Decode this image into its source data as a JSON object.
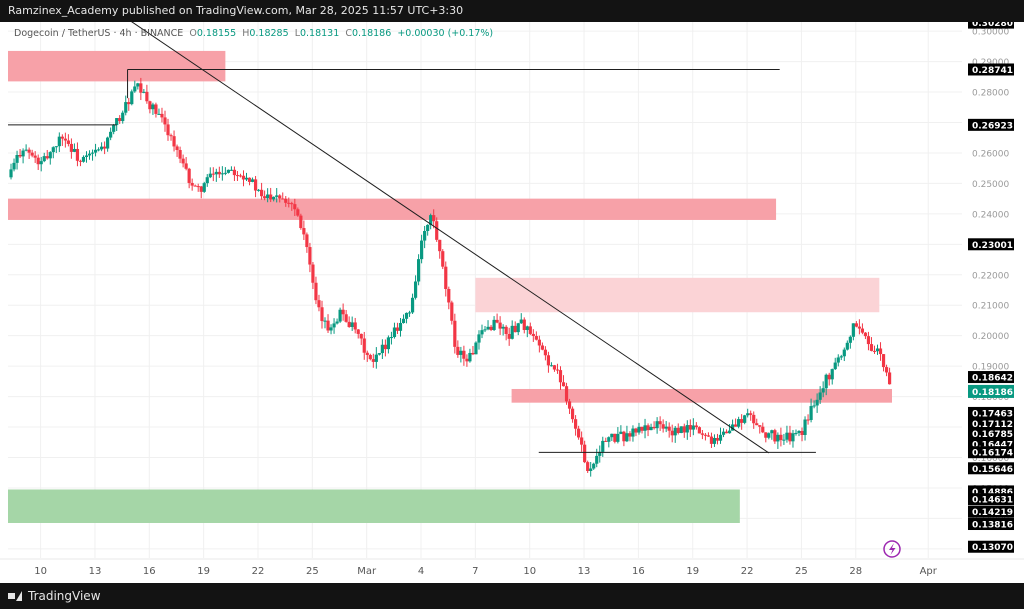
{
  "header": {
    "publisher_line": "Ramzinex_Academy published on TradingView.com, Mar 28, 2025 11:57 UTC+3:30"
  },
  "legend": {
    "symbol": "Dogecoin / TetherUS · 4h · BINANCE",
    "open_label": "O",
    "open": "0.18155",
    "high_label": "H",
    "high": "0.18285",
    "low_label": "L",
    "low": "0.18131",
    "close_label": "C",
    "close": "0.18186",
    "change": "+0.00030 (+0.17%)"
  },
  "footer": {
    "brand": "TradingView"
  },
  "colors": {
    "up": "#089981",
    "down": "#f23645",
    "zone_red": "#f7a1a8",
    "zone_pink": "#fbd3d6",
    "zone_green": "#a5d6a7",
    "label_bg": "#000000",
    "current_bg": "#089981"
  },
  "chart_data": {
    "type": "candlestick",
    "symbol": "Dogecoin / TetherUS",
    "interval": "4h",
    "exchange": "BINANCE",
    "y_axis": {
      "range": [
        0.127,
        0.303
      ],
      "ticks": [
        0.13,
        0.14,
        0.15,
        0.16,
        0.17,
        0.18,
        0.19,
        0.2,
        0.21,
        0.22,
        0.23,
        0.24,
        0.25,
        0.26,
        0.27,
        0.28,
        0.29,
        0.3
      ],
      "tick_labels": [
        "0.13000",
        "0.14000",
        "0.15000",
        "0.16000",
        "0.17000",
        "0.18000",
        "0.19000",
        "0.20000",
        "0.21000",
        "0.22000",
        "0.23000",
        "0.24000",
        "0.25000",
        "0.26000",
        "0.27000",
        "0.28000",
        "0.29000",
        "0.30000"
      ],
      "marked_levels": [
        {
          "value": 0.3028,
          "label": "0.30280"
        },
        {
          "value": 0.28741,
          "label": "0.28741"
        },
        {
          "value": 0.26923,
          "label": "0.26923"
        },
        {
          "value": 0.23001,
          "label": "0.23001"
        },
        {
          "value": 0.18642,
          "label": "0.18642"
        },
        {
          "value": 0.17463,
          "label": "0.17463"
        },
        {
          "value": 0.17112,
          "label": "0.17112"
        },
        {
          "value": 0.16785,
          "label": "0.16785"
        },
        {
          "value": 0.16447,
          "label": "0.16447"
        },
        {
          "value": 0.16174,
          "label": "0.16174"
        },
        {
          "value": 0.15646,
          "label": "0.15646"
        },
        {
          "value": 0.14886,
          "label": "0.14886"
        },
        {
          "value": 0.14631,
          "label": "0.14631"
        },
        {
          "value": 0.14219,
          "label": "0.14219"
        },
        {
          "value": 0.13816,
          "label": "0.13816"
        },
        {
          "value": 0.1307,
          "label": "0.13070"
        }
      ],
      "current_price": {
        "value": 0.18186,
        "label": "0.18186"
      }
    },
    "x_axis": {
      "day_range": [
        8.2,
        36.5
      ],
      "ticks": [
        {
          "day": 10,
          "label": "10"
        },
        {
          "day": 13,
          "label": "13"
        },
        {
          "day": 16,
          "label": "16"
        },
        {
          "day": 19,
          "label": "19"
        },
        {
          "day": 22,
          "label": "22"
        },
        {
          "day": 25,
          "label": "25"
        },
        {
          "day": 28,
          "label": "Mar"
        },
        {
          "day": 31,
          "label": "4"
        },
        {
          "day": 34,
          "label": "7"
        },
        {
          "day": 37,
          "label": "10"
        },
        {
          "day": 40,
          "label": "13"
        },
        {
          "day": 43,
          "label": "16"
        },
        {
          "day": 46,
          "label": "19"
        },
        {
          "day": 49,
          "label": "22"
        },
        {
          "day": 52,
          "label": "25"
        },
        {
          "day": 55,
          "label": "28"
        },
        {
          "day": 59,
          "label": "Apr"
        }
      ]
    },
    "price_path": [
      [
        8.2,
        0.252
      ],
      [
        9.0,
        0.262
      ],
      [
        10.0,
        0.256
      ],
      [
        11.2,
        0.266
      ],
      [
        12.2,
        0.257
      ],
      [
        13.5,
        0.262
      ],
      [
        14.2,
        0.27
      ],
      [
        15.3,
        0.282
      ],
      [
        16.0,
        0.276
      ],
      [
        17.0,
        0.268
      ],
      [
        17.8,
        0.256
      ],
      [
        18.6,
        0.247
      ],
      [
        19.5,
        0.253
      ],
      [
        20.5,
        0.255
      ],
      [
        21.5,
        0.252
      ],
      [
        22.2,
        0.245
      ],
      [
        23.0,
        0.247
      ],
      [
        24.0,
        0.243
      ],
      [
        24.6,
        0.233
      ],
      [
        25.2,
        0.21
      ],
      [
        25.8,
        0.202
      ],
      [
        26.6,
        0.208
      ],
      [
        27.5,
        0.2
      ],
      [
        28.3,
        0.19
      ],
      [
        28.8,
        0.195
      ],
      [
        29.5,
        0.202
      ],
      [
        30.4,
        0.208
      ],
      [
        31.0,
        0.23
      ],
      [
        31.6,
        0.24
      ],
      [
        32.3,
        0.218
      ],
      [
        32.9,
        0.196
      ],
      [
        33.6,
        0.192
      ],
      [
        34.3,
        0.2
      ],
      [
        35.1,
        0.205
      ],
      [
        35.8,
        0.2
      ],
      [
        36.5,
        0.205
      ],
      [
        37.3,
        0.198
      ],
      [
        38.0,
        0.192
      ],
      [
        38.8,
        0.185
      ],
      [
        39.6,
        0.168
      ],
      [
        40.3,
        0.155
      ],
      [
        40.8,
        0.163
      ],
      [
        41.3,
        0.166
      ],
      [
        42.2,
        0.167
      ],
      [
        43.0,
        0.169
      ],
      [
        44.0,
        0.171
      ],
      [
        45.0,
        0.168
      ],
      [
        46.0,
        0.17
      ],
      [
        47.0,
        0.166
      ],
      [
        48.0,
        0.169
      ],
      [
        49.0,
        0.174
      ],
      [
        50.0,
        0.168
      ],
      [
        51.0,
        0.166
      ],
      [
        52.0,
        0.168
      ],
      [
        52.8,
        0.18
      ],
      [
        53.6,
        0.188
      ],
      [
        54.4,
        0.196
      ],
      [
        55.0,
        0.205
      ],
      [
        55.6,
        0.198
      ],
      [
        56.2,
        0.195
      ],
      [
        56.7,
        0.187
      ],
      [
        57.0,
        0.182
      ]
    ],
    "zones": [
      {
        "name": "supply-zone-top",
        "kind": "red",
        "x0": 8.2,
        "x1": 20.2,
        "y0": 0.2835,
        "y1": 0.2935
      },
      {
        "name": "resistance-zone",
        "kind": "red",
        "x0": 8.2,
        "x1": 50.6,
        "y0": 0.238,
        "y1": 0.245
      },
      {
        "name": "supply-zone-mid",
        "kind": "pink",
        "x0": 34.0,
        "x1": 56.3,
        "y0": 0.2077,
        "y1": 0.219
      },
      {
        "name": "demand-flip-zone",
        "kind": "red",
        "x0": 36.0,
        "x1": 57.0,
        "y0": 0.178,
        "y1": 0.1825
      },
      {
        "name": "demand-zone-bottom",
        "kind": "green",
        "x0": 8.2,
        "x1": 48.6,
        "y0": 0.1385,
        "y1": 0.1495
      }
    ],
    "lines": [
      {
        "name": "downtrend-line",
        "x0": 14.8,
        "y0": 0.304,
        "x1": 50.2,
        "y1": 0.1615
      },
      {
        "name": "high-horizontal-line",
        "x0": 14.8,
        "y0": 0.2874,
        "x1": 50.8,
        "y1": 0.2874
      },
      {
        "name": "high-short-line",
        "x0": 14.8,
        "y0": 0.2874,
        "x1": 14.8,
        "y1": 0.278
      },
      {
        "name": "left-level-line",
        "x0": 8.2,
        "y0": 0.2692,
        "x1": 14.2,
        "y1": 0.2692
      },
      {
        "name": "range-low-line",
        "x0": 37.5,
        "y0": 0.1617,
        "x1": 52.8,
        "y1": 0.1617
      }
    ]
  }
}
